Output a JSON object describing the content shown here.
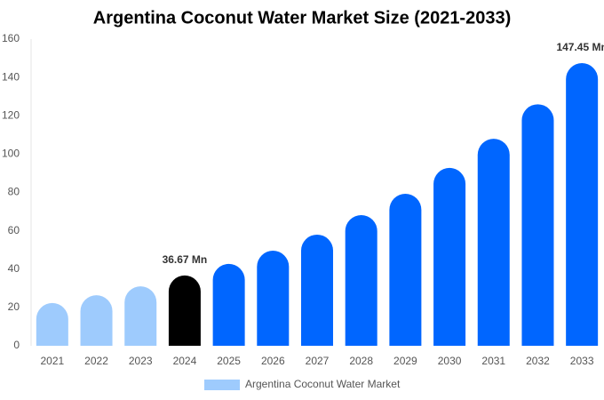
{
  "chart_data": {
    "type": "bar",
    "title": "Argentina Coconut Water Market Size (2021-2033)",
    "categories": [
      "2021",
      "2022",
      "2023",
      "2024",
      "2025",
      "2026",
      "2027",
      "2028",
      "2029",
      "2030",
      "2031",
      "2032",
      "2033"
    ],
    "series": [
      {
        "name": "Argentina Coconut Water Market",
        "color": "#9ecbfd",
        "values": [
          22.3,
          26.4,
          31,
          36.67,
          42.7,
          49.6,
          58,
          68.2,
          79.3,
          92.8,
          108,
          126,
          147.45
        ],
        "value_labels": [
          null,
          null,
          null,
          "36.67 Mn",
          null,
          null,
          null,
          null,
          null,
          null,
          null,
          null,
          "147.45 Mn"
        ],
        "colors": [
          "#9ecbfd",
          "#9ecbfd",
          "#9ecbfd",
          "#000000",
          "#0066ff",
          "#0066ff",
          "#0066ff",
          "#0066ff",
          "#0066ff",
          "#0066ff",
          "#0066ff",
          "#0066ff",
          "#0066ff"
        ]
      }
    ],
    "ylim": [
      0,
      160
    ],
    "yticks": [
      0,
      20,
      40,
      60,
      80,
      100,
      120,
      140,
      160
    ],
    "grid": false,
    "legend": "bottom"
  }
}
